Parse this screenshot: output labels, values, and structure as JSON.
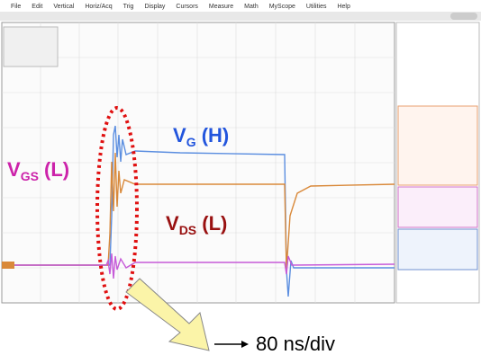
{
  "menu": [
    "File",
    "Edit",
    "Vertical",
    "Horiz/Acq",
    "Trig",
    "Display",
    "Cursors",
    "Measure",
    "Math",
    "MyScope",
    "Utilities",
    "Help"
  ],
  "annotations": {
    "vg": {
      "main": "V",
      "sub": "G",
      "suffix": " (H)"
    },
    "vgs": {
      "main": "V",
      "sub": "GS",
      "suffix": " (L)"
    },
    "vds": {
      "main": "V",
      "sub": "DS",
      "suffix": " (L)"
    },
    "timebase": "80 ns/div"
  }
}
